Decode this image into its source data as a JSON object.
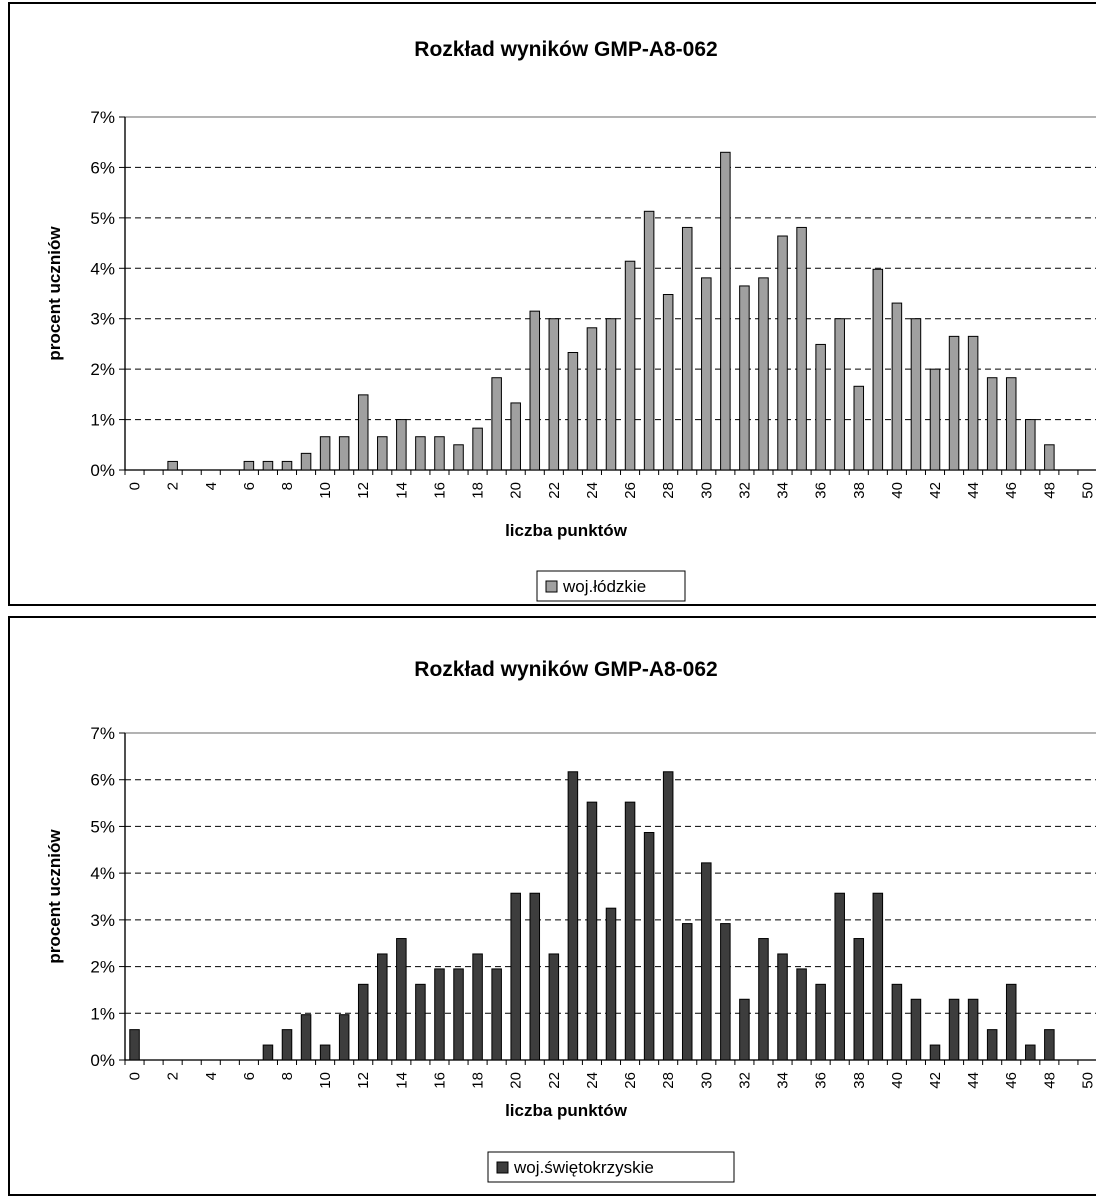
{
  "chart_data": [
    {
      "type": "bar",
      "title": "Rozkład wyników GMP-A8-062",
      "xlabel": "liczba punktów",
      "ylabel": "procent uczniów",
      "ylim": [
        0,
        7
      ],
      "xlim": [
        0,
        50
      ],
      "yticks": [
        "0%",
        "1%",
        "2%",
        "3%",
        "4%",
        "5%",
        "6%",
        "7%"
      ],
      "xticks": [
        "0",
        "2",
        "4",
        "6",
        "8",
        "10",
        "12",
        "14",
        "16",
        "18",
        "20",
        "22",
        "24",
        "26",
        "28",
        "30",
        "32",
        "34",
        "36",
        "38",
        "40",
        "42",
        "44",
        "46",
        "48",
        "50"
      ],
      "grid": true,
      "legend_position": "bottom",
      "color": "#a0a0a0",
      "series": [
        {
          "name": "woj.łódzkie",
          "x": [
            0,
            1,
            2,
            3,
            4,
            5,
            6,
            7,
            8,
            9,
            10,
            11,
            12,
            13,
            14,
            15,
            16,
            17,
            18,
            19,
            20,
            21,
            22,
            23,
            24,
            25,
            26,
            27,
            28,
            29,
            30,
            31,
            32,
            33,
            34,
            35,
            36,
            37,
            38,
            39,
            40,
            41,
            42,
            43,
            44,
            45,
            46,
            47,
            48,
            49,
            50
          ],
          "values": [
            0,
            0,
            0.17,
            0,
            0,
            0,
            0.17,
            0.17,
            0.17,
            0.33,
            0.66,
            0.66,
            1.49,
            0.66,
            1.0,
            0.66,
            0.66,
            0.5,
            0.83,
            1.83,
            1.33,
            3.15,
            3.0,
            2.33,
            2.82,
            3.0,
            4.14,
            5.13,
            3.48,
            4.81,
            3.81,
            6.3,
            3.65,
            3.81,
            4.64,
            4.81,
            2.49,
            3.0,
            1.66,
            3.98,
            3.31,
            3.0,
            2.0,
            2.65,
            2.65,
            1.83,
            1.83,
            1.0,
            0.5,
            0,
            0
          ]
        }
      ]
    },
    {
      "type": "bar",
      "title": "Rozkład wyników GMP-A8-062",
      "xlabel": "liczba punktów",
      "ylabel": "procent uczniów",
      "ylim": [
        0,
        7
      ],
      "xlim": [
        0,
        50
      ],
      "yticks": [
        "0%",
        "1%",
        "2%",
        "3%",
        "4%",
        "5%",
        "6%",
        "7%"
      ],
      "xticks": [
        "0",
        "2",
        "4",
        "6",
        "8",
        "10",
        "12",
        "14",
        "16",
        "18",
        "20",
        "22",
        "24",
        "26",
        "28",
        "30",
        "32",
        "34",
        "36",
        "38",
        "40",
        "42",
        "44",
        "46",
        "48",
        "50"
      ],
      "grid": true,
      "legend_position": "bottom",
      "color": "#3d3d3d",
      "series": [
        {
          "name": "woj.świętokrzyskie",
          "x": [
            0,
            1,
            2,
            3,
            4,
            5,
            6,
            7,
            8,
            9,
            10,
            11,
            12,
            13,
            14,
            15,
            16,
            17,
            18,
            19,
            20,
            21,
            22,
            23,
            24,
            25,
            26,
            27,
            28,
            29,
            30,
            31,
            32,
            33,
            34,
            35,
            36,
            37,
            38,
            39,
            40,
            41,
            42,
            43,
            44,
            45,
            46,
            47,
            48,
            49,
            50
          ],
          "values": [
            0.65,
            0,
            0,
            0,
            0,
            0,
            0,
            0.32,
            0.65,
            0.97,
            0.32,
            0.97,
            1.62,
            2.27,
            2.6,
            1.62,
            1.95,
            1.95,
            2.27,
            1.95,
            3.57,
            3.57,
            2.27,
            6.17,
            5.52,
            3.25,
            5.52,
            4.87,
            6.17,
            2.92,
            4.22,
            2.92,
            1.3,
            2.6,
            2.27,
            1.95,
            1.62,
            3.57,
            2.6,
            3.57,
            1.62,
            1.3,
            0.32,
            1.3,
            1.3,
            0.65,
            1.62,
            0.32,
            0.65,
            0,
            0
          ]
        }
      ]
    }
  ]
}
